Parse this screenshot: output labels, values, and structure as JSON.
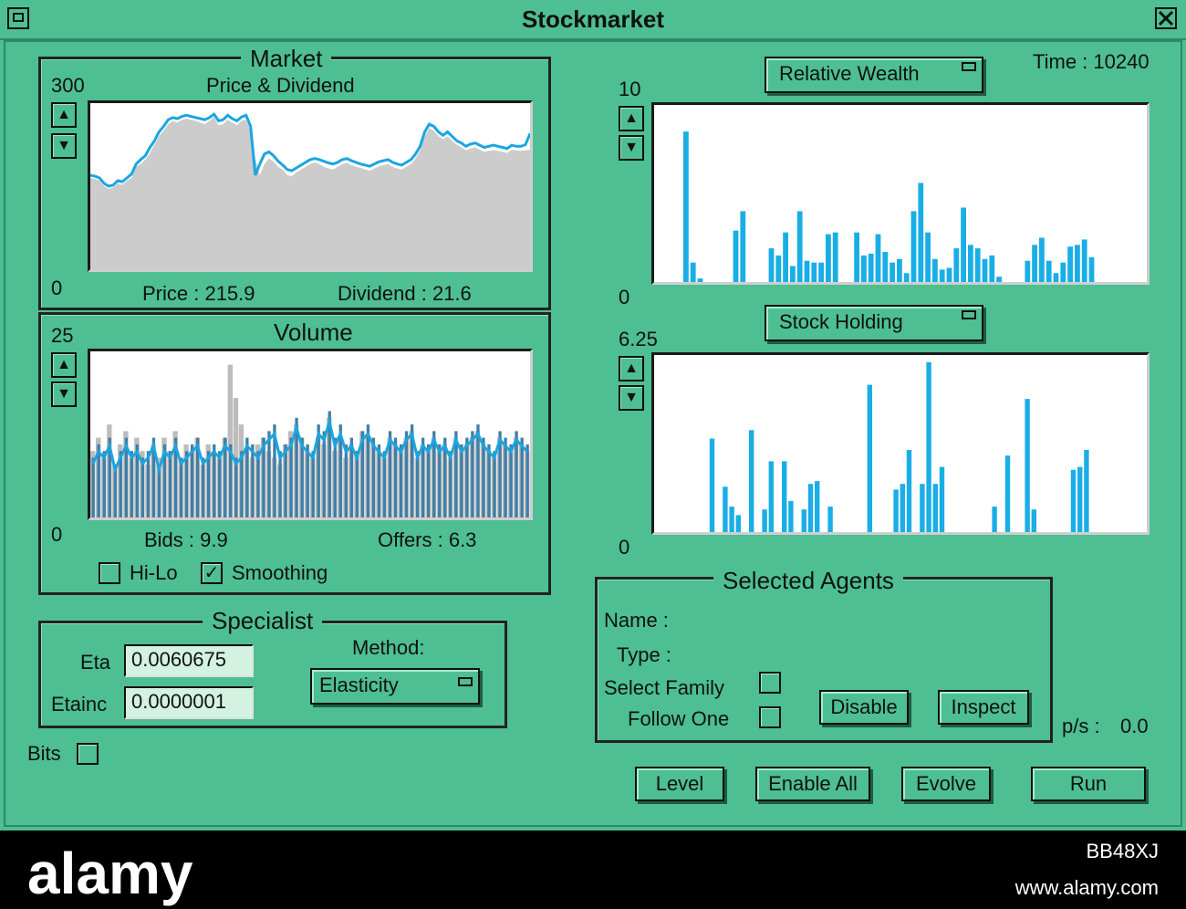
{
  "window": {
    "title": "Stockmarket"
  },
  "market": {
    "frame_title": "Market",
    "chart_title": "Price & Dividend",
    "ymax": "300",
    "ymin": "0",
    "price_label": "Price : 215.9",
    "dividend_label": "Dividend : 21.6"
  },
  "volume": {
    "frame_title": "Volume",
    "ymax": "25",
    "ymin": "0",
    "bids_label": "Bids : 9.9",
    "offers_label": "Offers : 6.3",
    "hilo_label": "Hi-Lo",
    "hilo_checked": false,
    "smoothing_label": "Smoothing",
    "smoothing_checked": true
  },
  "specialist": {
    "frame_title": "Specialist",
    "eta_label": "Eta",
    "eta_value": "0.0060675",
    "etainc_label": "Etainc",
    "etainc_value": "0.0000001",
    "method_label": "Method:",
    "method_value": "Elasticity"
  },
  "bits": {
    "label": "Bits",
    "checked": false
  },
  "time": {
    "label": "Time : 10240"
  },
  "relative_wealth": {
    "menu_label": "Relative Wealth",
    "ymax": "10",
    "ymin": "0"
  },
  "stock_holding": {
    "menu_label": "Stock Holding",
    "ymax": "6.25",
    "ymin": "0"
  },
  "selected_agents": {
    "frame_title": "Selected Agents",
    "name_label": "Name :",
    "type_label": "Type :",
    "select_family_label": "Select Family",
    "follow_one_label": "Follow One",
    "disable_button": "Disable",
    "inspect_button": "Inspect"
  },
  "rate": {
    "label": "p/s :",
    "value": "0.0"
  },
  "buttons": {
    "level": "Level",
    "enable_all": "Enable All",
    "evolve": "Evolve",
    "run": "Run"
  },
  "colors": {
    "window_bg": "#4dbf93",
    "plot_line": "#1aa6e0",
    "plot_fill": "#cccccc",
    "bar": "#1aaee6"
  },
  "footer": {
    "brand": "alamy",
    "image_code": "BB48XJ",
    "url": "www.alamy.com"
  },
  "chart_data": [
    {
      "type": "area",
      "title": "Price & Dividend",
      "ylim": [
        0,
        300
      ],
      "series": [
        {
          "values": [
            165,
            163,
            160,
            150,
            145,
            148,
            155,
            152,
            160,
            165,
            185,
            190,
            198,
            210,
            225,
            240,
            250,
            262,
            268,
            265,
            270,
            272,
            270,
            268,
            265,
            262,
            268,
            275,
            260,
            262,
            270,
            265,
            260,
            268,
            270,
            250,
            200,
            170,
            190,
            200,
            195,
            185,
            180,
            170,
            168,
            175,
            180,
            185,
            190,
            193,
            190,
            185,
            182,
            180,
            185,
            190,
            192,
            188,
            185,
            183,
            180,
            178,
            182,
            186,
            188,
            190,
            185,
            182,
            180,
            185,
            190,
            200,
            215,
            240,
            255,
            250,
            240,
            235,
            240,
            232,
            225,
            220,
            215,
            218,
            220,
            216,
            212,
            214,
            215,
            214,
            212,
            210,
            216,
            215,
            214,
            215,
            216
          ]
        },
        {
          "values": [
            170,
            168,
            165,
            155,
            150,
            152,
            160,
            158,
            165,
            172,
            190,
            198,
            205,
            220,
            232,
            248,
            258,
            270,
            274,
            272,
            276,
            278,
            276,
            274,
            272,
            270,
            274,
            280,
            268,
            270,
            278,
            272,
            268,
            275,
            278,
            258,
            170,
            190,
            208,
            212,
            205,
            195,
            188,
            180,
            178,
            183,
            188,
            193,
            198,
            200,
            198,
            195,
            192,
            190,
            193,
            198,
            200,
            196,
            193,
            190,
            188,
            186,
            190,
            194,
            196,
            198,
            193,
            190,
            188,
            193,
            198,
            208,
            222,
            248,
            262,
            258,
            248,
            242,
            248,
            240,
            232,
            228,
            222,
            226,
            228,
            224,
            220,
            222,
            224,
            222,
            220,
            218,
            224,
            222,
            222,
            225,
            245
          ]
        }
      ]
    },
    {
      "type": "bar",
      "title": "Volume",
      "ylim": [
        0,
        25
      ],
      "series": [
        {
          "values": [
            10,
            12,
            9,
            14,
            8,
            11,
            13,
            9,
            12,
            10,
            8,
            11,
            9,
            12,
            10,
            13,
            9,
            11,
            10,
            12,
            8,
            11,
            10,
            9,
            12,
            23,
            18,
            14,
            10,
            9,
            11,
            12,
            10,
            9,
            8,
            11,
            13,
            14,
            12,
            10,
            9,
            12,
            11,
            15,
            10,
            12,
            9,
            11,
            10,
            13,
            12,
            11,
            10,
            9,
            12,
            11,
            10,
            12,
            13,
            9,
            11,
            10,
            12,
            10,
            11,
            9,
            12,
            10,
            11,
            12,
            13,
            11,
            10,
            9,
            12,
            11,
            10,
            12,
            11,
            10
          ]
        },
        {
          "values": [
            9,
            11,
            10,
            12,
            8,
            10,
            12,
            10,
            11,
            9,
            10,
            12,
            8,
            11,
            10,
            12,
            9,
            10,
            11,
            12,
            9,
            10,
            11,
            10,
            12,
            11,
            9,
            10,
            12,
            11,
            10,
            12,
            13,
            14,
            10,
            11,
            12,
            15,
            12,
            11,
            10,
            14,
            13,
            16,
            12,
            14,
            11,
            12,
            10,
            13,
            14,
            12,
            11,
            10,
            13,
            12,
            11,
            13,
            14,
            10,
            12,
            11,
            13,
            11,
            12,
            10,
            13,
            11,
            12,
            13,
            14,
            12,
            11,
            10,
            13,
            12,
            11,
            13,
            12,
            11
          ]
        }
      ]
    },
    {
      "type": "bar",
      "title": "Relative Wealth",
      "ylim": [
        0,
        10
      ],
      "values": [
        8.5,
        1.1,
        0.2,
        0,
        0,
        0,
        0,
        2.9,
        4,
        0,
        0,
        0,
        1.9,
        1.5,
        2.8,
        0.9,
        4,
        1.2,
        1.1,
        1.1,
        2.7,
        2.8,
        0,
        0,
        2.8,
        1.5,
        1.6,
        2.7,
        1.7,
        1.1,
        1.3,
        0.5,
        4,
        5.6,
        2.8,
        1.3,
        0.7,
        0.8,
        1.9,
        4.2,
        2.1,
        1.9,
        1.3,
        1.5,
        0.3,
        0,
        0,
        0,
        1.2,
        2.1,
        2.5,
        1.2,
        0.5,
        1.1,
        2,
        2.1,
        2.4,
        1.4,
        0,
        0
      ]
    },
    {
      "type": "bar",
      "title": "Stock Holding",
      "ylim": [
        0,
        6.25
      ],
      "values": [
        0,
        0,
        0,
        0,
        3.3,
        0,
        1.6,
        0.9,
        0.6,
        0,
        3.6,
        0,
        0.8,
        2.5,
        0,
        2.5,
        1.1,
        0,
        0.8,
        1.7,
        1.8,
        0,
        0.9,
        0,
        0,
        0,
        0,
        0,
        5.2,
        0,
        0,
        0,
        1.5,
        1.7,
        2.9,
        0,
        1.7,
        6,
        1.7,
        2.3,
        0,
        0,
        0,
        0,
        0,
        0,
        0,
        0.9,
        0,
        2.7,
        0,
        0,
        4.7,
        0.8,
        0,
        0,
        0,
        0,
        0,
        2.2,
        2.3,
        2.9,
        0,
        0,
        0
      ]
    }
  ]
}
